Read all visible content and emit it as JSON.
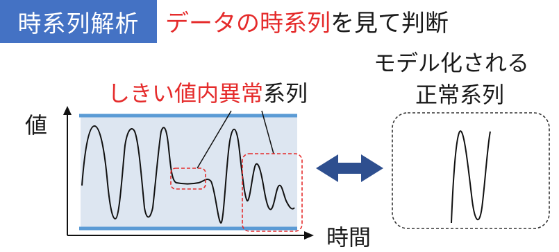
{
  "badge": {
    "label": "時系列解析"
  },
  "title": {
    "part1": "データの時系列",
    "part2": "を見て判断"
  },
  "annotations": {
    "threshold_red": "しきい値内異常",
    "threshold_black": "系列",
    "model_line1": "モデル化される",
    "model_line2": "正常系列"
  },
  "axes": {
    "y_label": "値",
    "x_label": "時間"
  },
  "colors": {
    "badge_bg": "#4472c4",
    "accent_red": "#e52b2b",
    "threshold_band": "#5b9bd5",
    "plot_fill": "#dde6f1",
    "arrow": "#2e4f8f"
  }
}
